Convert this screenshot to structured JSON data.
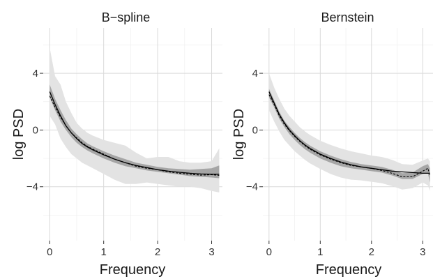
{
  "chart_data": [
    {
      "type": "line",
      "title": "B−spline",
      "xlabel": "Frequency",
      "ylabel": "log PSD",
      "xlim": [
        -0.12,
        3.2
      ],
      "ylim": [
        -7.8,
        7.2
      ],
      "x_ticks": [
        0,
        1,
        2,
        3
      ],
      "y_ticks": [
        -4,
        0,
        4
      ],
      "x_tick_labels": [
        "0",
        "1",
        "2",
        "3"
      ],
      "y_tick_labels": [
        "−4",
        "0",
        "4"
      ],
      "grid": true,
      "x": [
        0,
        0.1,
        0.2,
        0.3,
        0.4,
        0.5,
        0.6,
        0.7,
        0.8,
        1.0,
        1.2,
        1.4,
        1.6,
        1.8,
        2.0,
        2.2,
        2.4,
        2.6,
        2.8,
        3.0,
        3.14
      ],
      "series": [
        {
          "style": "solid",
          "values": [
            2.7,
            1.8,
            1.0,
            0.3,
            -0.2,
            -0.6,
            -0.95,
            -1.2,
            -1.4,
            -1.75,
            -2.05,
            -2.3,
            -2.5,
            -2.65,
            -2.8,
            -2.9,
            -2.98,
            -3.05,
            -3.1,
            -3.12,
            -3.12
          ]
        },
        {
          "style": "dashed",
          "values": [
            2.4,
            1.6,
            0.9,
            0.3,
            -0.2,
            -0.55,
            -0.9,
            -1.15,
            -1.35,
            -1.7,
            -2.05,
            -2.3,
            -2.55,
            -2.7,
            -2.8,
            -2.95,
            -3.05,
            -3.12,
            -3.18,
            -3.15,
            -3.2
          ]
        }
      ],
      "bands": [
        {
          "level": "outer",
          "lower": [
            1.0,
            0.4,
            -0.6,
            -1.2,
            -1.7,
            -2.0,
            -2.3,
            -2.5,
            -2.7,
            -3.1,
            -3.5,
            -3.8,
            -3.8,
            -3.7,
            -3.8,
            -3.9,
            -4.0,
            -4.0,
            -4.1,
            -4.3,
            -4.4
          ],
          "upper": [
            5.8,
            3.8,
            3.2,
            2.0,
            1.2,
            0.5,
            0.1,
            -0.2,
            -0.4,
            -0.7,
            -0.9,
            -1.1,
            -1.6,
            -2.0,
            -1.9,
            -1.9,
            -2.2,
            -2.3,
            -2.3,
            -2.2,
            -1.3
          ]
        },
        {
          "level": "inner",
          "lower": [
            2.3,
            1.4,
            0.6,
            0.0,
            -0.5,
            -0.9,
            -1.2,
            -1.45,
            -1.65,
            -2.0,
            -2.3,
            -2.55,
            -2.7,
            -2.85,
            -2.95,
            -3.05,
            -3.15,
            -3.25,
            -3.3,
            -3.35,
            -3.4
          ],
          "upper": [
            3.2,
            2.2,
            1.4,
            0.7,
            0.1,
            -0.3,
            -0.65,
            -0.95,
            -1.15,
            -1.5,
            -1.8,
            -2.05,
            -2.3,
            -2.45,
            -2.6,
            -2.7,
            -2.75,
            -2.8,
            -2.75,
            -2.7,
            -2.5
          ]
        }
      ]
    },
    {
      "type": "line",
      "title": "Bernstein",
      "xlabel": "Frequency",
      "ylabel": "log PSD",
      "xlim": [
        -0.12,
        3.2
      ],
      "ylim": [
        -7.8,
        7.2
      ],
      "x_ticks": [
        0,
        1,
        2,
        3
      ],
      "y_ticks": [
        -4,
        0,
        4
      ],
      "x_tick_labels": [
        "0",
        "1",
        "2",
        "3"
      ],
      "y_tick_labels": [
        "−4",
        "0",
        "4"
      ],
      "grid": true,
      "x": [
        0,
        0.1,
        0.2,
        0.3,
        0.4,
        0.5,
        0.6,
        0.7,
        0.8,
        1.0,
        1.2,
        1.4,
        1.6,
        1.8,
        2.0,
        2.2,
        2.4,
        2.6,
        2.8,
        3.0,
        3.1,
        3.14
      ],
      "series": [
        {
          "style": "solid",
          "values": [
            2.7,
            1.9,
            1.1,
            0.5,
            0.0,
            -0.4,
            -0.75,
            -1.05,
            -1.3,
            -1.7,
            -2.0,
            -2.25,
            -2.45,
            -2.6,
            -2.7,
            -2.8,
            -2.9,
            -2.95,
            -3.0,
            -3.05,
            -3.05,
            -3.05
          ]
        },
        {
          "style": "dashed",
          "values": [
            2.5,
            1.8,
            1.0,
            0.4,
            -0.05,
            -0.45,
            -0.8,
            -1.1,
            -1.35,
            -1.75,
            -2.05,
            -2.3,
            -2.5,
            -2.6,
            -2.7,
            -2.85,
            -3.05,
            -3.3,
            -3.3,
            -2.9,
            -2.7,
            -3.2
          ]
        }
      ],
      "bands": [
        {
          "level": "outer",
          "lower": [
            1.4,
            0.6,
            -0.1,
            -0.7,
            -1.1,
            -1.5,
            -1.8,
            -2.1,
            -2.35,
            -2.75,
            -3.1,
            -3.35,
            -3.5,
            -3.55,
            -3.65,
            -3.75,
            -3.95,
            -4.2,
            -4.1,
            -3.7,
            -3.9,
            -4.3
          ],
          "upper": [
            4.0,
            3.0,
            2.2,
            1.5,
            1.0,
            0.6,
            0.2,
            -0.1,
            -0.35,
            -0.75,
            -1.05,
            -1.3,
            -1.5,
            -1.65,
            -1.8,
            -1.9,
            -2.1,
            -2.4,
            -2.45,
            -2.15,
            -2.0,
            -2.2
          ]
        },
        {
          "level": "inner",
          "lower": [
            2.3,
            1.6,
            0.8,
            0.2,
            -0.3,
            -0.7,
            -1.05,
            -1.35,
            -1.6,
            -2.0,
            -2.3,
            -2.55,
            -2.7,
            -2.8,
            -2.9,
            -3.0,
            -3.2,
            -3.45,
            -3.45,
            -3.1,
            -3.05,
            -3.7
          ],
          "upper": [
            2.9,
            2.1,
            1.3,
            0.65,
            0.2,
            -0.2,
            -0.55,
            -0.85,
            -1.1,
            -1.5,
            -1.8,
            -2.05,
            -2.25,
            -2.4,
            -2.5,
            -2.6,
            -2.8,
            -3.05,
            -3.0,
            -2.55,
            -2.4,
            -2.7
          ]
        }
      ]
    }
  ],
  "colors": {
    "panel_background": "#ffffff",
    "grid_major": "#d9d9d9",
    "grid_minor": "#efefef",
    "band_outer": "#e3e3e3",
    "band_inner": "#a6a6a6",
    "line": "#000000"
  }
}
